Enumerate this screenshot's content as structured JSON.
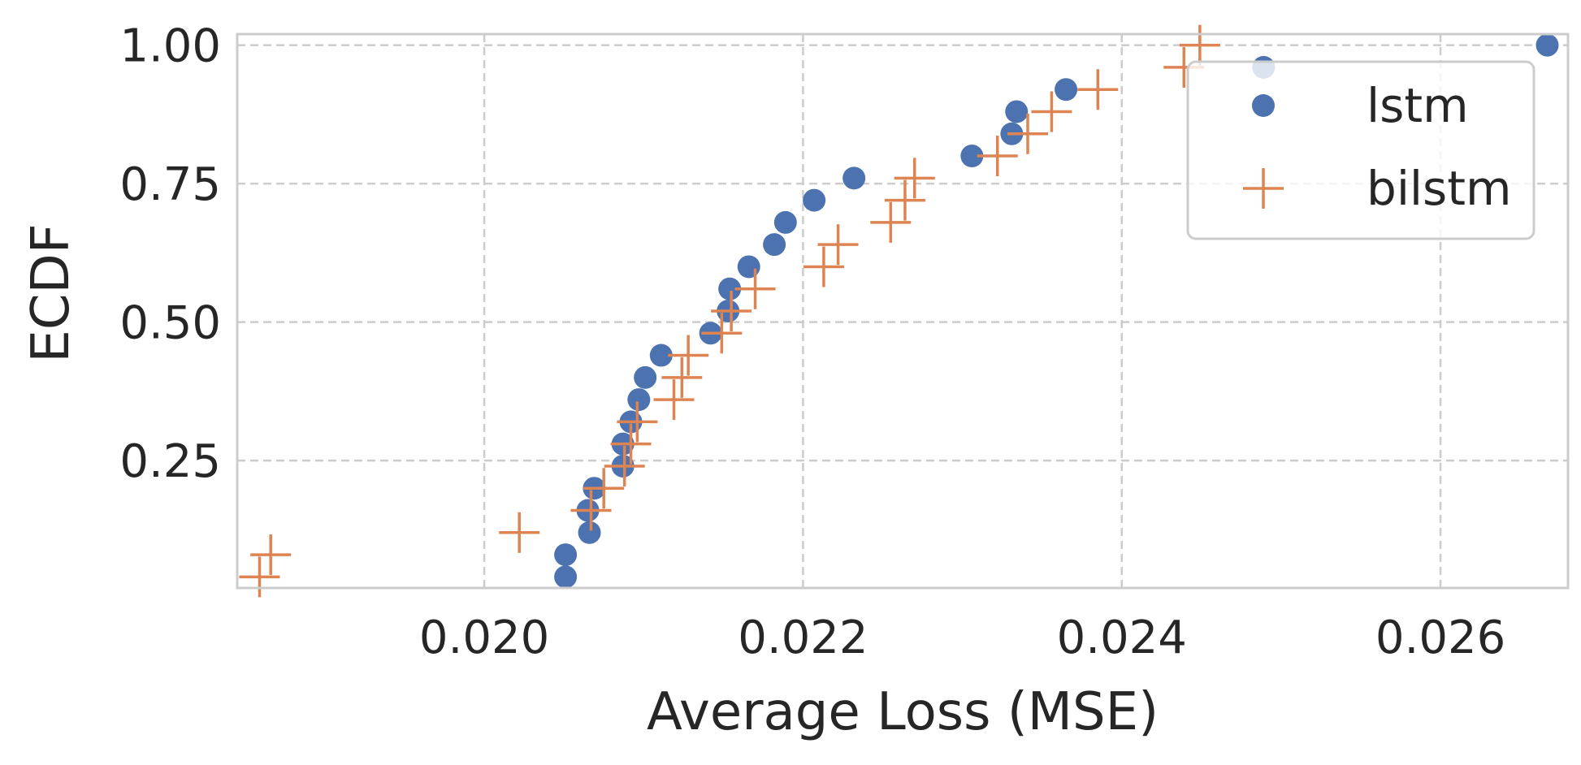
{
  "chart_data": {
    "type": "scatter",
    "title": "",
    "xlabel": "Average Loss (MSE)",
    "ylabel": "ECDF",
    "xlim": [
      0.01845,
      0.0268
    ],
    "ylim": [
      0.02,
      1.02
    ],
    "xticks": [
      0.02,
      0.022,
      0.024,
      0.026
    ],
    "xtick_labels": [
      "0.020",
      "0.022",
      "0.024",
      "0.026"
    ],
    "yticks": [
      0.25,
      0.5,
      0.75,
      1.0
    ],
    "ytick_labels": [
      "0.25",
      "0.50",
      "0.75",
      "1.00"
    ],
    "grid": true,
    "legend_position": "top-right",
    "series": [
      {
        "name": "lstm",
        "marker": "circle",
        "color": "#4c72b0",
        "points": [
          [
            0.02051,
            0.04
          ],
          [
            0.02051,
            0.08
          ],
          [
            0.02066,
            0.12
          ],
          [
            0.02065,
            0.16
          ],
          [
            0.02069,
            0.2
          ],
          [
            0.02087,
            0.24
          ],
          [
            0.02087,
            0.28
          ],
          [
            0.02092,
            0.32
          ],
          [
            0.02097,
            0.36
          ],
          [
            0.02101,
            0.4
          ],
          [
            0.02111,
            0.44
          ],
          [
            0.02142,
            0.48
          ],
          [
            0.02153,
            0.52
          ],
          [
            0.02154,
            0.56
          ],
          [
            0.02166,
            0.6
          ],
          [
            0.02182,
            0.64
          ],
          [
            0.02189,
            0.68
          ],
          [
            0.02207,
            0.72
          ],
          [
            0.02232,
            0.76
          ],
          [
            0.02306,
            0.8
          ],
          [
            0.02331,
            0.84
          ],
          [
            0.02334,
            0.88
          ],
          [
            0.02365,
            0.92
          ],
          [
            0.02489,
            0.96
          ],
          [
            0.02667,
            1.0
          ]
        ]
      },
      {
        "name": "bilstm",
        "marker": "plus",
        "color": "#dd8452",
        "points": [
          [
            0.01859,
            0.04
          ],
          [
            0.01866,
            0.08
          ],
          [
            0.02022,
            0.12
          ],
          [
            0.02067,
            0.16
          ],
          [
            0.02075,
            0.2
          ],
          [
            0.02088,
            0.24
          ],
          [
            0.02092,
            0.28
          ],
          [
            0.02096,
            0.32
          ],
          [
            0.02119,
            0.36
          ],
          [
            0.02124,
            0.4
          ],
          [
            0.02128,
            0.44
          ],
          [
            0.02149,
            0.48
          ],
          [
            0.02155,
            0.52
          ],
          [
            0.0217,
            0.56
          ],
          [
            0.02213,
            0.6
          ],
          [
            0.02222,
            0.64
          ],
          [
            0.02255,
            0.68
          ],
          [
            0.02264,
            0.72
          ],
          [
            0.0227,
            0.76
          ],
          [
            0.02322,
            0.8
          ],
          [
            0.02341,
            0.84
          ],
          [
            0.02356,
            0.88
          ],
          [
            0.02385,
            0.92
          ],
          [
            0.02439,
            0.96
          ],
          [
            0.02449,
            1.0
          ]
        ]
      }
    ]
  }
}
